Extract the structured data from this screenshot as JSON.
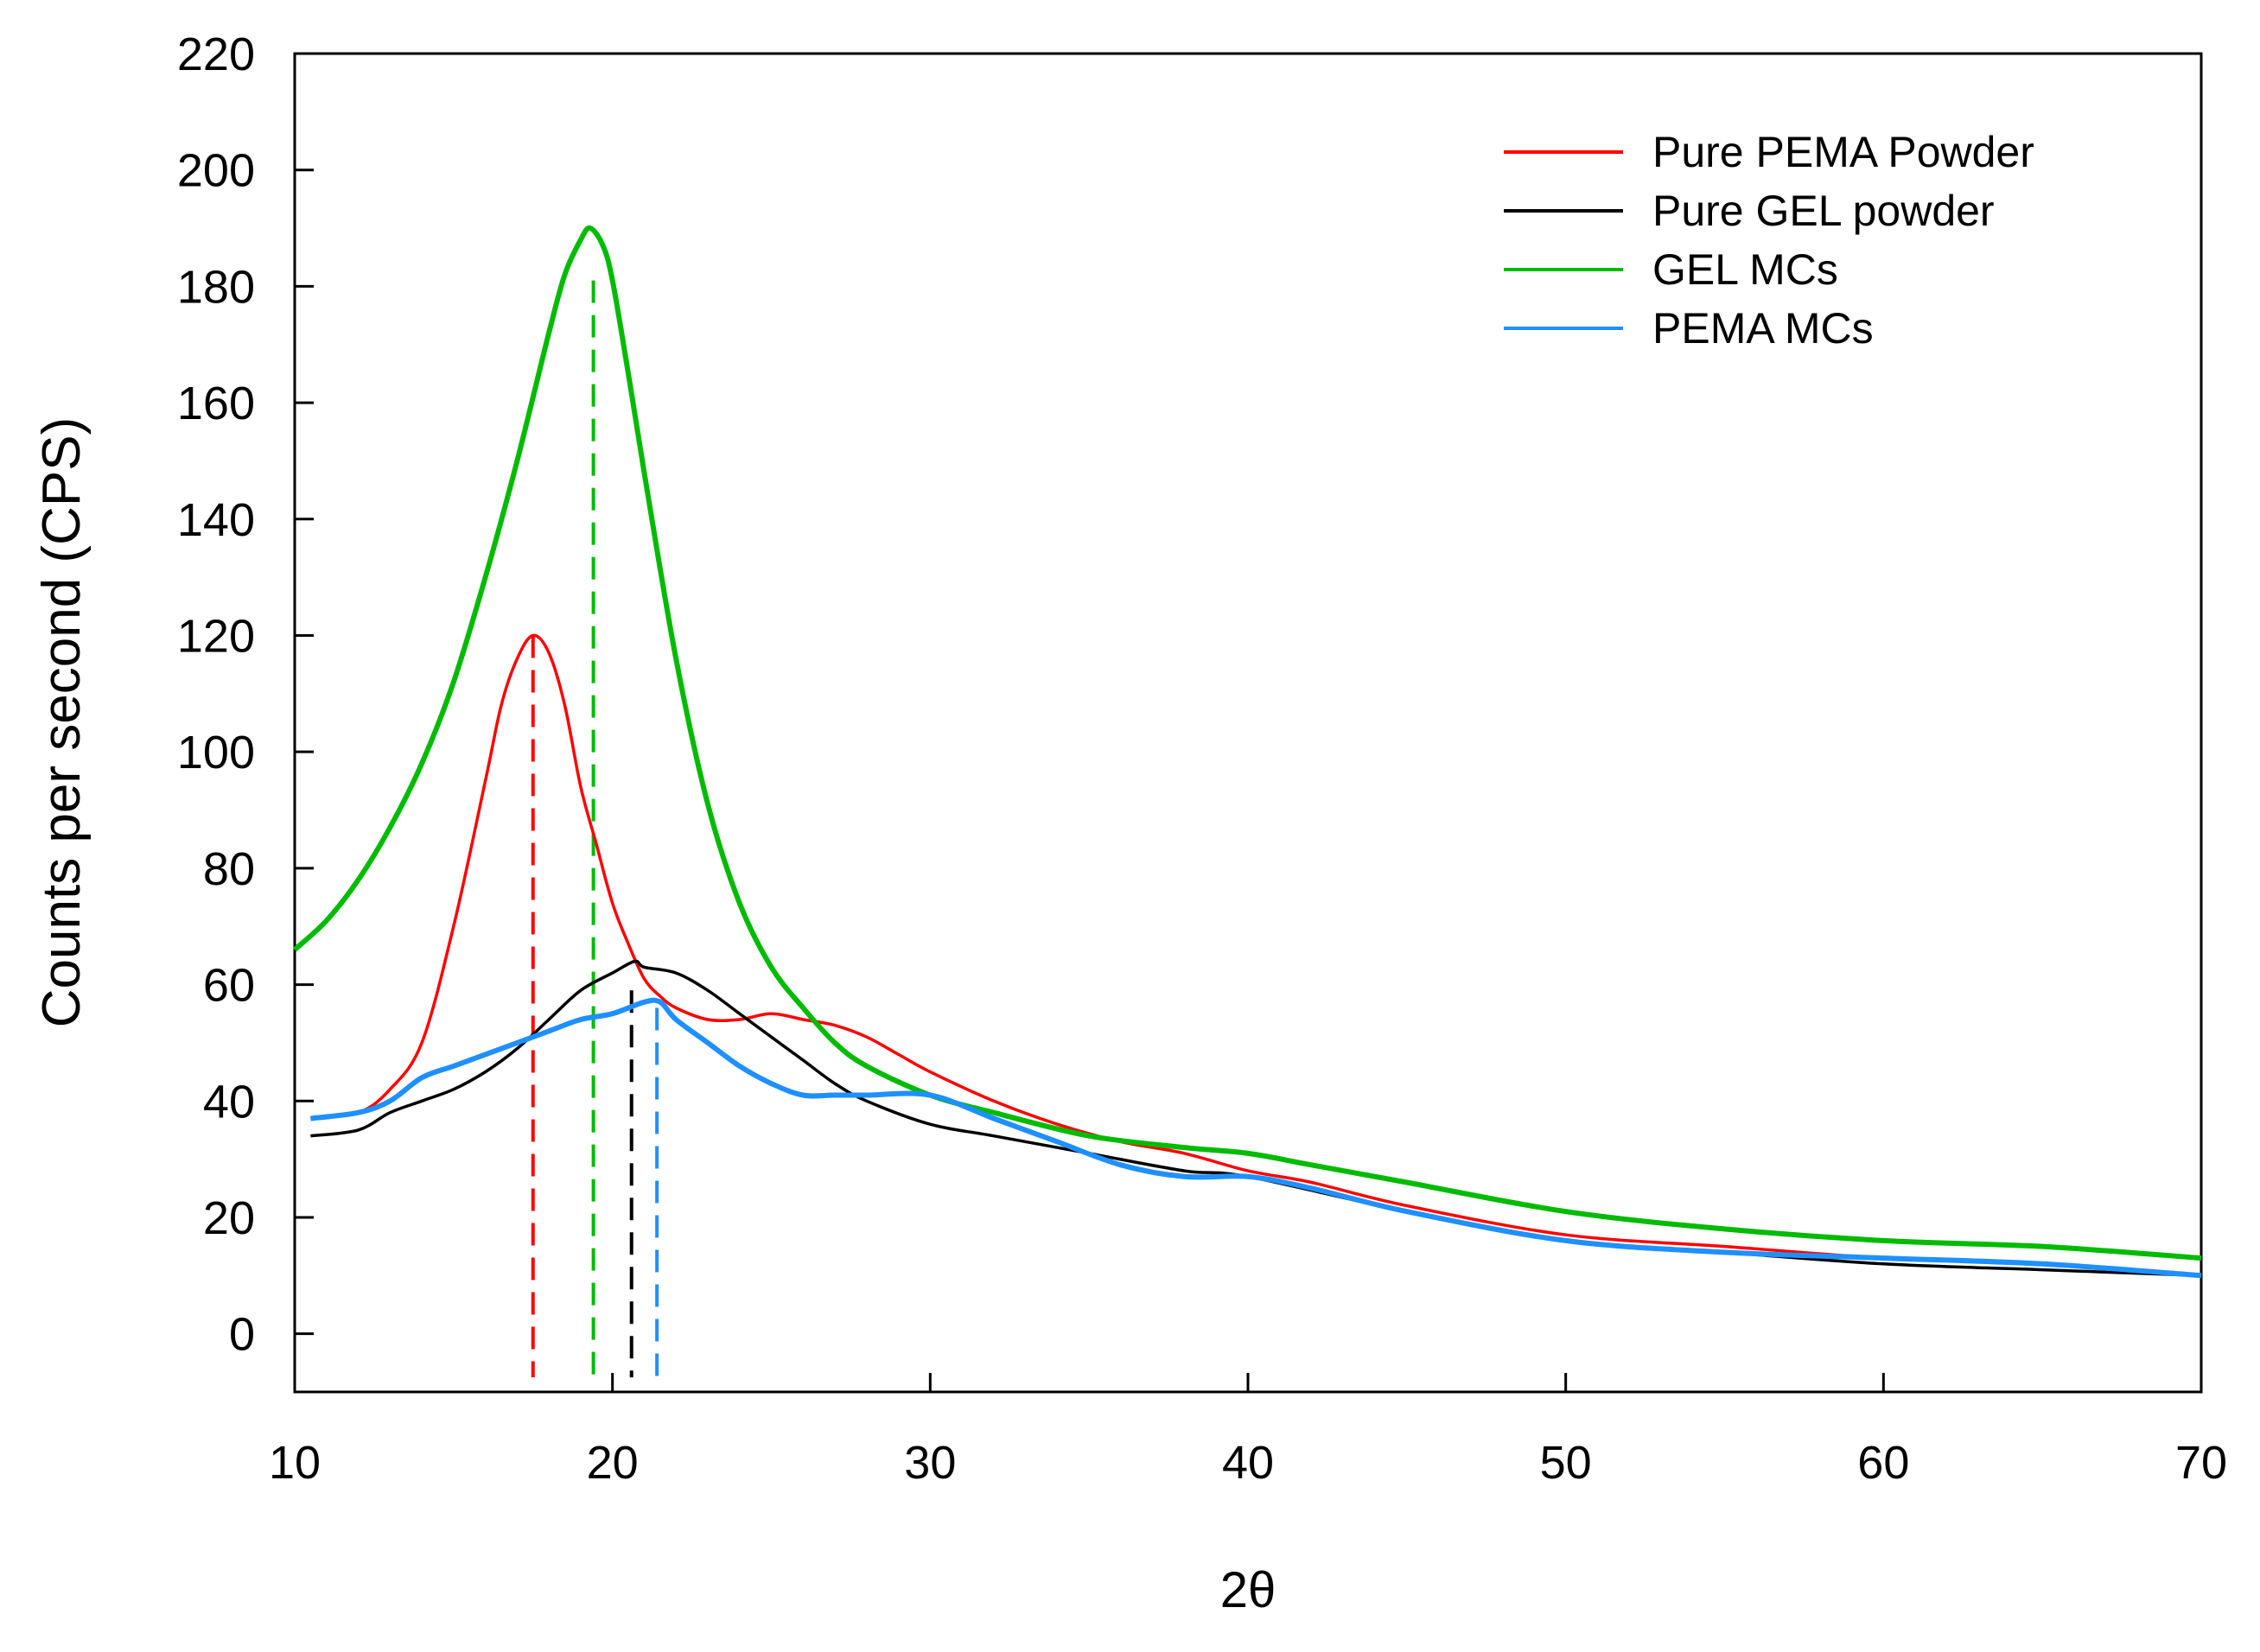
{
  "chart_data": {
    "type": "line",
    "title": "",
    "xlabel": "2θ",
    "ylabel": "Counts per second (CPS)",
    "xlim": [
      10,
      70
    ],
    "ylim": [
      -10,
      220
    ],
    "xticks": [
      10,
      20,
      30,
      40,
      50,
      60,
      70
    ],
    "yticks": [
      0,
      20,
      40,
      60,
      80,
      100,
      120,
      140,
      160,
      180,
      200,
      220
    ],
    "grid": false,
    "legend_position": "top-right",
    "series": [
      {
        "name": "Pure PEMA Powder",
        "color": "#ff0000",
        "x": [
          10.5,
          12,
          13,
          14,
          15,
          16,
          16.5,
          17,
          17.5,
          18,
          18.5,
          19,
          19.5,
          20,
          20.5,
          21,
          21.5,
          22,
          23,
          24,
          25,
          26,
          27,
          28,
          29,
          30,
          32,
          34,
          36,
          38,
          40,
          42,
          45,
          50,
          55,
          60,
          65,
          70
        ],
        "values": [
          37,
          38,
          42,
          50,
          70,
          95,
          108,
          116,
          120,
          117,
          108,
          94,
          84,
          74,
          67,
          61,
          58,
          56,
          54,
          54,
          55,
          54,
          53,
          51,
          48,
          45,
          40,
          36,
          33,
          31,
          28,
          26,
          22,
          17,
          15,
          13,
          12,
          10
        ]
      },
      {
        "name": "Pure GEL powder",
        "color": "#000000",
        "x": [
          10.5,
          12,
          13,
          14,
          15,
          16,
          17,
          18,
          19,
          20,
          20.7,
          21,
          22,
          23,
          24,
          25,
          26,
          27,
          28,
          30,
          32,
          35,
          38,
          40,
          45,
          50,
          55,
          60,
          65,
          70
        ],
        "values": [
          34,
          35,
          38,
          40,
          42,
          45,
          49,
          54,
          59,
          62,
          64,
          63,
          62,
          59,
          55,
          51,
          47,
          43,
          40,
          36,
          34,
          31,
          28,
          27,
          21,
          16,
          14,
          12,
          11,
          10
        ]
      },
      {
        "name": "GEL MCs",
        "color": "#00bb00",
        "x": [
          10,
          11,
          12,
          13,
          14,
          15,
          16,
          17,
          18,
          18.5,
          19,
          19.3,
          19.7,
          20,
          20.5,
          21,
          22,
          23,
          24,
          25,
          26,
          27,
          28,
          30,
          32,
          35,
          38,
          40,
          42,
          45,
          50,
          55,
          60,
          65,
          70
        ],
        "values": [
          66,
          71,
          78,
          87,
          98,
          112,
          130,
          150,
          172,
          182,
          188,
          190,
          187,
          181,
          165,
          148,
          116,
          91,
          74,
          63,
          56,
          50,
          46,
          41,
          38,
          34,
          32,
          31,
          29,
          26,
          21,
          18,
          16,
          15,
          13
        ]
      },
      {
        "name": "PEMA MCs",
        "color": "#1e90ff",
        "x": [
          10.5,
          12,
          13,
          14,
          15,
          16,
          17,
          18,
          19,
          20,
          21,
          21.5,
          22,
          23,
          24,
          25,
          26,
          27,
          28,
          30,
          32,
          34,
          36,
          38,
          40,
          42,
          45,
          50,
          55,
          60,
          65,
          70
        ],
        "values": [
          37,
          38,
          40,
          44,
          46,
          48,
          50,
          52,
          54,
          55,
          57,
          57,
          54,
          50,
          46,
          43,
          41,
          41,
          41,
          41,
          37,
          33,
          29,
          27,
          27,
          25,
          21,
          16,
          14,
          13,
          12,
          10
        ]
      }
    ],
    "peak_markers": [
      {
        "series": "Pure PEMA Powder",
        "x": 17.5,
        "top": 120,
        "color": "#ff0000"
      },
      {
        "series": "GEL MCs",
        "x": 19.4,
        "top": 181,
        "color": "#00bb00"
      },
      {
        "series": "Pure GEL powder",
        "x": 20.6,
        "top": 59,
        "color": "#000000"
      },
      {
        "series": "PEMA MCs",
        "x": 21.4,
        "top": 56,
        "color": "#1e90ff"
      }
    ]
  }
}
